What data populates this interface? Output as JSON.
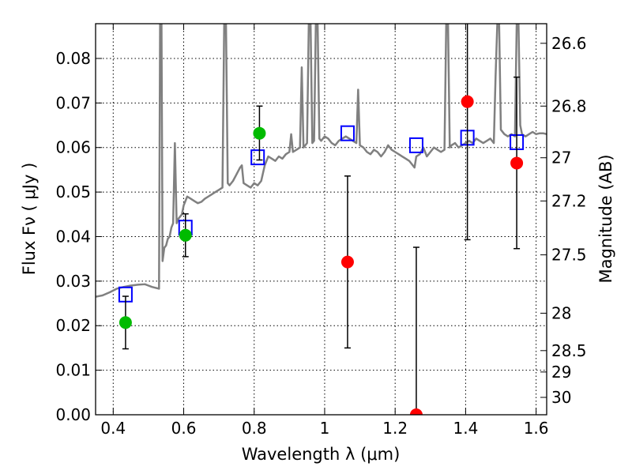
{
  "chart_data": {
    "type": "scatter",
    "title": "",
    "xlabel": "Wavelength  λ (μm)",
    "ylabel": "Flux  Fν  ( μJy )",
    "ylabel_right": "Magnitude (AB)",
    "xlim": [
      0.35,
      1.63
    ],
    "ylim": [
      0.0,
      0.0878
    ],
    "xticks": [
      0.4,
      0.6,
      0.8,
      1.0,
      1.2,
      1.4,
      1.6
    ],
    "xtick_labels": [
      "0.4",
      "0.6",
      "0.8",
      "1",
      "1.2",
      "1.4",
      "1.6"
    ],
    "yticks": [
      0.0,
      0.01,
      0.02,
      0.03,
      0.04,
      0.05,
      0.06,
      0.07,
      0.08
    ],
    "ytick_labels": [
      "0.00",
      "0.01",
      "0.02",
      "0.03",
      "0.04",
      "0.05",
      "0.06",
      "0.07",
      "0.08"
    ],
    "right_ticks": [
      {
        "label": "26.6",
        "flux": 0.0834
      },
      {
        "label": "26.8",
        "flux": 0.0693
      },
      {
        "label": "27",
        "flux": 0.0577
      },
      {
        "label": "27.2",
        "flux": 0.048
      },
      {
        "label": "27.5",
        "flux": 0.0359
      },
      {
        "label": "28",
        "flux": 0.0228
      },
      {
        "label": "28.5",
        "flux": 0.0144
      },
      {
        "label": "29",
        "flux": 0.0096
      },
      {
        "label": "30",
        "flux": 0.0039
      }
    ],
    "grid": true,
    "series": [
      {
        "name": "",
        "kind": "line",
        "color": "#808080",
        "points": [
          [
            0.35,
            0.0265
          ],
          [
            0.37,
            0.0268
          ],
          [
            0.39,
            0.0275
          ],
          [
            0.41,
            0.0283
          ],
          [
            0.43,
            0.0287
          ],
          [
            0.45,
            0.029
          ],
          [
            0.47,
            0.0292
          ],
          [
            0.49,
            0.0293
          ],
          [
            0.5,
            0.029
          ],
          [
            0.51,
            0.0287
          ],
          [
            0.52,
            0.0285
          ],
          [
            0.53,
            0.0283
          ],
          [
            0.533,
            0.088
          ],
          [
            0.537,
            0.088
          ],
          [
            0.54,
            0.0345
          ],
          [
            0.545,
            0.0375
          ],
          [
            0.55,
            0.038
          ],
          [
            0.555,
            0.0395
          ],
          [
            0.56,
            0.04
          ],
          [
            0.565,
            0.042
          ],
          [
            0.57,
            0.043
          ],
          [
            0.575,
            0.061
          ],
          [
            0.58,
            0.043
          ],
          [
            0.585,
            0.044
          ],
          [
            0.59,
            0.0445
          ],
          [
            0.595,
            0.045
          ],
          [
            0.6,
            0.047
          ],
          [
            0.605,
            0.048
          ],
          [
            0.61,
            0.049
          ],
          [
            0.62,
            0.0485
          ],
          [
            0.63,
            0.048
          ],
          [
            0.64,
            0.0475
          ],
          [
            0.65,
            0.0478
          ],
          [
            0.66,
            0.0485
          ],
          [
            0.67,
            0.049
          ],
          [
            0.68,
            0.0495
          ],
          [
            0.69,
            0.05
          ],
          [
            0.7,
            0.0505
          ],
          [
            0.71,
            0.051
          ],
          [
            0.715,
            0.088
          ],
          [
            0.72,
            0.088
          ],
          [
            0.725,
            0.052
          ],
          [
            0.73,
            0.0515
          ],
          [
            0.74,
            0.0525
          ],
          [
            0.75,
            0.054
          ],
          [
            0.76,
            0.0555
          ],
          [
            0.765,
            0.056
          ],
          [
            0.77,
            0.052
          ],
          [
            0.78,
            0.0515
          ],
          [
            0.79,
            0.051
          ],
          [
            0.8,
            0.052
          ],
          [
            0.81,
            0.0515
          ],
          [
            0.82,
            0.0525
          ],
          [
            0.83,
            0.056
          ],
          [
            0.84,
            0.058
          ],
          [
            0.85,
            0.0575
          ],
          [
            0.86,
            0.057
          ],
          [
            0.87,
            0.058
          ],
          [
            0.88,
            0.0575
          ],
          [
            0.89,
            0.0585
          ],
          [
            0.9,
            0.059
          ],
          [
            0.905,
            0.063
          ],
          [
            0.91,
            0.059
          ],
          [
            0.92,
            0.0595
          ],
          [
            0.93,
            0.06
          ],
          [
            0.935,
            0.078
          ],
          [
            0.94,
            0.06
          ],
          [
            0.95,
            0.061
          ],
          [
            0.955,
            0.088
          ],
          [
            0.96,
            0.088
          ],
          [
            0.965,
            0.061
          ],
          [
            0.97,
            0.0615
          ],
          [
            0.975,
            0.088
          ],
          [
            0.98,
            0.088
          ],
          [
            0.985,
            0.062
          ],
          [
            0.99,
            0.0615
          ],
          [
            1.0,
            0.0625
          ],
          [
            1.01,
            0.062
          ],
          [
            1.02,
            0.061
          ],
          [
            1.03,
            0.0605
          ],
          [
            1.04,
            0.0615
          ],
          [
            1.05,
            0.062
          ],
          [
            1.06,
            0.0625
          ],
          [
            1.07,
            0.062
          ],
          [
            1.08,
            0.0615
          ],
          [
            1.09,
            0.061
          ],
          [
            1.095,
            0.073
          ],
          [
            1.1,
            0.0605
          ],
          [
            1.11,
            0.06
          ],
          [
            1.12,
            0.059
          ],
          [
            1.13,
            0.0585
          ],
          [
            1.14,
            0.0595
          ],
          [
            1.15,
            0.059
          ],
          [
            1.16,
            0.058
          ],
          [
            1.17,
            0.059
          ],
          [
            1.18,
            0.0605
          ],
          [
            1.19,
            0.0595
          ],
          [
            1.2,
            0.059
          ],
          [
            1.21,
            0.0585
          ],
          [
            1.22,
            0.058
          ],
          [
            1.23,
            0.0575
          ],
          [
            1.24,
            0.057
          ],
          [
            1.25,
            0.056
          ],
          [
            1.255,
            0.0555
          ],
          [
            1.26,
            0.058
          ],
          [
            1.27,
            0.0585
          ],
          [
            1.28,
            0.06
          ],
          [
            1.29,
            0.058
          ],
          [
            1.3,
            0.059
          ],
          [
            1.31,
            0.06
          ],
          [
            1.32,
            0.0595
          ],
          [
            1.33,
            0.059
          ],
          [
            1.34,
            0.0595
          ],
          [
            1.345,
            0.088
          ],
          [
            1.35,
            0.088
          ],
          [
            1.355,
            0.06
          ],
          [
            1.36,
            0.0605
          ],
          [
            1.37,
            0.061
          ],
          [
            1.38,
            0.06
          ],
          [
            1.39,
            0.0605
          ],
          [
            1.4,
            0.061
          ],
          [
            1.41,
            0.0615
          ],
          [
            1.42,
            0.061
          ],
          [
            1.43,
            0.062
          ],
          [
            1.44,
            0.0615
          ],
          [
            1.45,
            0.061
          ],
          [
            1.46,
            0.0615
          ],
          [
            1.47,
            0.062
          ],
          [
            1.475,
            0.0615
          ],
          [
            1.48,
            0.061
          ],
          [
            1.485,
            0.076
          ],
          [
            1.49,
            0.088
          ],
          [
            1.495,
            0.088
          ],
          [
            1.5,
            0.064
          ],
          [
            1.51,
            0.063
          ],
          [
            1.52,
            0.0625
          ],
          [
            1.53,
            0.063
          ],
          [
            1.54,
            0.0625
          ],
          [
            1.545,
            0.088
          ],
          [
            1.55,
            0.088
          ],
          [
            1.555,
            0.065
          ],
          [
            1.56,
            0.063
          ],
          [
            1.57,
            0.0625
          ],
          [
            1.58,
            0.063
          ],
          [
            1.59,
            0.0635
          ],
          [
            1.6,
            0.063
          ],
          [
            1.61,
            0.0632
          ],
          [
            1.62,
            0.0632
          ],
          [
            1.63,
            0.063
          ]
        ]
      },
      {
        "name": "",
        "kind": "markers",
        "marker": "square",
        "color": "#0000ff",
        "points": [
          [
            0.435,
            0.027
          ],
          [
            0.605,
            0.042
          ],
          [
            0.81,
            0.0578
          ],
          [
            1.065,
            0.0632
          ],
          [
            1.26,
            0.0605
          ],
          [
            1.405,
            0.0622
          ],
          [
            1.545,
            0.0612
          ]
        ]
      },
      {
        "name": "",
        "kind": "markers",
        "marker": "circle",
        "color": "#00bb00",
        "points": [
          {
            "x": 0.435,
            "y": 0.0207,
            "yerr_low": 0.0148,
            "yerr_high": 0.0266
          },
          {
            "x": 0.605,
            "y": 0.0403,
            "yerr_low": 0.0355,
            "yerr_high": 0.0451
          },
          {
            "x": 0.815,
            "y": 0.0632,
            "yerr_low": 0.0572,
            "yerr_high": 0.0693
          }
        ]
      },
      {
        "name": "",
        "kind": "markers",
        "marker": "circle",
        "color": "#ff0000",
        "points": [
          {
            "x": 1.065,
            "y": 0.0343,
            "yerr_low": 0.015,
            "yerr_high": 0.0536
          },
          {
            "x": 1.26,
            "y": 0.0,
            "yerr_low": 0.0,
            "yerr_high": 0.0376
          },
          {
            "x": 1.405,
            "y": 0.0703,
            "yerr_low": 0.0393,
            "yerr_high": 0.088
          },
          {
            "x": 1.545,
            "y": 0.0565,
            "yerr_low": 0.0373,
            "yerr_high": 0.0758
          }
        ]
      }
    ]
  }
}
